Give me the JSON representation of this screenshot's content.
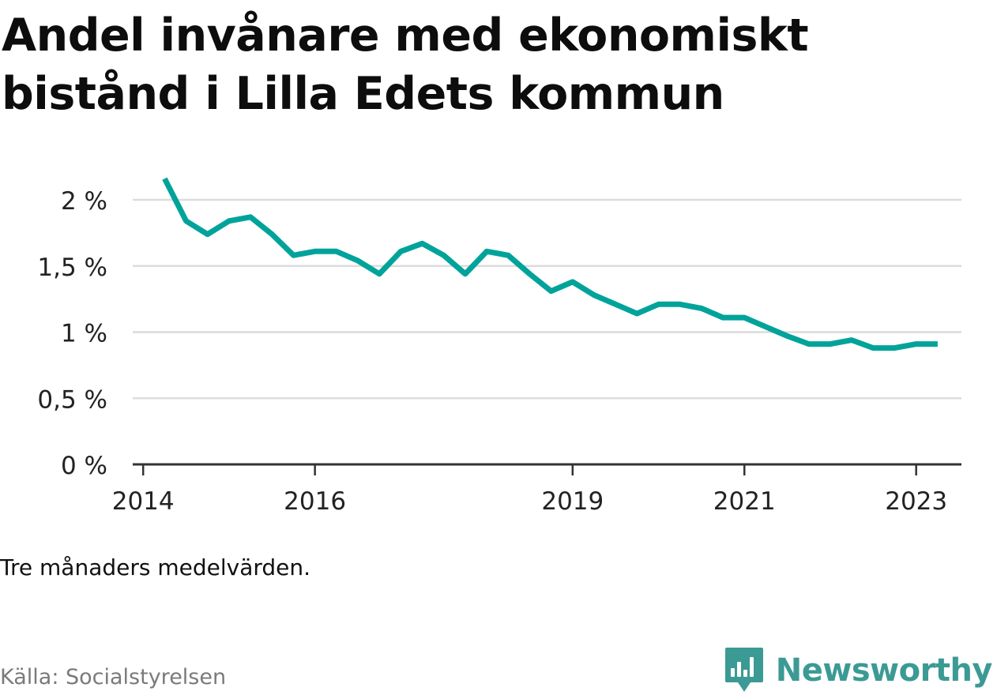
{
  "chart_data": {
    "type": "line",
    "title": "Andel invånare med ekonomiskt bistånd i Lilla Edets kommun",
    "x_ticks": [
      "2014",
      "2016",
      "2019",
      "2021",
      "2023"
    ],
    "y_ticks": [
      "0 %",
      "0,5 %",
      "1 %",
      "1,5 %",
      "2 %"
    ],
    "ylim": [
      0,
      2.3
    ],
    "grid": true,
    "legend": "none",
    "series": [
      {
        "x": [
          "2014-04",
          "2014-07",
          "2014-10",
          "2015-01",
          "2015-04",
          "2015-07",
          "2015-10",
          "2016-01",
          "2016-04",
          "2016-07",
          "2016-10",
          "2017-01",
          "2017-04",
          "2017-07",
          "2017-10",
          "2018-01",
          "2018-04",
          "2018-07",
          "2018-10",
          "2019-01",
          "2019-04",
          "2019-07",
          "2019-10",
          "2020-01",
          "2020-04",
          "2020-07",
          "2020-10",
          "2021-01",
          "2021-04",
          "2021-07",
          "2021-10",
          "2022-01",
          "2022-04",
          "2022-07",
          "2022-10",
          "2023-01",
          "2023-04"
        ],
        "values": [
          2.16,
          1.84,
          1.74,
          1.84,
          1.87,
          1.74,
          1.58,
          1.61,
          1.61,
          1.54,
          1.44,
          1.61,
          1.67,
          1.58,
          1.44,
          1.61,
          1.58,
          1.44,
          1.31,
          1.38,
          1.28,
          1.21,
          1.14,
          1.21,
          1.21,
          1.18,
          1.11,
          1.11,
          1.04,
          0.97,
          0.91,
          0.91,
          0.94,
          0.88,
          0.88,
          0.91,
          0.91
        ]
      }
    ]
  },
  "note": "Tre månaders medelvärden.",
  "source": "Källa: Socialstyrelsen",
  "brand": {
    "name": "Newsworthy",
    "logo_icon": "newsworthy-logo-icon"
  },
  "colors": {
    "line": "#00a39a",
    "grid": "#dcdcdc",
    "axis": "#333333",
    "brand": "#3c9a94"
  }
}
